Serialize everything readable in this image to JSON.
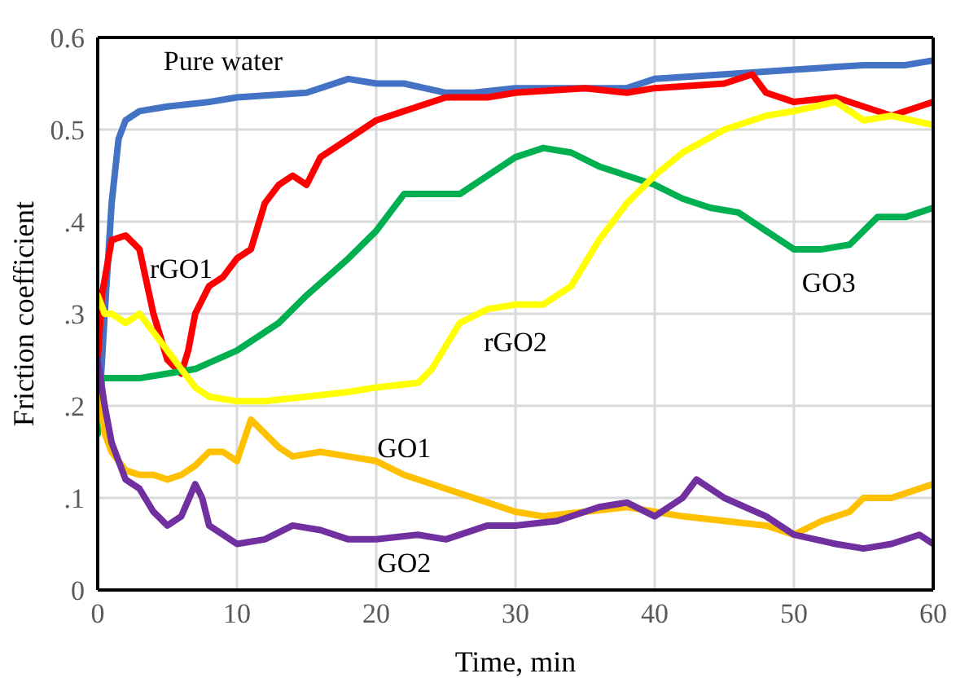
{
  "chart_data": {
    "type": "line",
    "xlabel": "Time, min",
    "ylabel": "Friction coefficient",
    "xlim": [
      0,
      60
    ],
    "xticks": [
      0,
      10,
      20,
      30,
      40,
      50,
      60
    ],
    "ylim": [
      0,
      0.6
    ],
    "yticks": [
      0,
      {
        "value": 0.1,
        "label": ".1"
      },
      {
        "value": 0.2,
        "label": ".2"
      },
      {
        "value": 0.3,
        "label": ".3"
      },
      {
        "value": 0.4,
        "label": ".4"
      },
      0.5,
      0.6
    ],
    "grid": true,
    "legend": false,
    "series": [
      {
        "name": "Pure water",
        "color": "#4472c4",
        "x": [
          0,
          0.5,
          1,
          1.5,
          2,
          3,
          5,
          8,
          10,
          15,
          18,
          20,
          22,
          25,
          27,
          30,
          35,
          38,
          40,
          45,
          50,
          55,
          58,
          60
        ],
        "values": [
          0.17,
          0.3,
          0.42,
          0.49,
          0.51,
          0.52,
          0.525,
          0.53,
          0.535,
          0.54,
          0.555,
          0.55,
          0.55,
          0.54,
          0.54,
          0.545,
          0.545,
          0.545,
          0.555,
          0.56,
          0.565,
          0.57,
          0.57,
          0.575
        ]
      },
      {
        "name": "rGO1",
        "color": "#ff0000",
        "x": [
          0,
          0.3,
          1,
          2,
          3,
          4,
          5,
          6,
          6.5,
          7,
          8,
          9,
          10,
          11,
          12,
          13,
          14,
          15,
          16,
          18,
          20,
          22,
          25,
          28,
          30,
          35,
          38,
          40,
          45,
          47,
          48,
          50,
          53,
          55,
          57,
          59,
          60
        ],
        "values": [
          0.25,
          0.32,
          0.38,
          0.385,
          0.37,
          0.3,
          0.25,
          0.235,
          0.26,
          0.3,
          0.33,
          0.34,
          0.36,
          0.37,
          0.42,
          0.44,
          0.45,
          0.44,
          0.47,
          0.49,
          0.51,
          0.52,
          0.535,
          0.535,
          0.54,
          0.545,
          0.54,
          0.545,
          0.55,
          0.56,
          0.54,
          0.53,
          0.535,
          0.525,
          0.515,
          0.525,
          0.53
        ]
      },
      {
        "name": "GO3",
        "color": "#00b050",
        "x": [
          0,
          0.3,
          1,
          3,
          5,
          7,
          10,
          13,
          15,
          18,
          20,
          22,
          24,
          26,
          28,
          30,
          32,
          34,
          36,
          38,
          40,
          42,
          44,
          46,
          48,
          50,
          52,
          54,
          56,
          58,
          60
        ],
        "values": [
          0.17,
          0.23,
          0.23,
          0.23,
          0.235,
          0.24,
          0.26,
          0.29,
          0.32,
          0.36,
          0.39,
          0.43,
          0.43,
          0.43,
          0.45,
          0.47,
          0.48,
          0.475,
          0.46,
          0.45,
          0.44,
          0.425,
          0.415,
          0.41,
          0.39,
          0.37,
          0.37,
          0.375,
          0.405,
          0.405,
          0.415
        ]
      },
      {
        "name": "rGO2",
        "color": "#ffff00",
        "x": [
          0,
          0.5,
          1,
          2,
          3,
          4,
          5,
          6,
          7,
          8,
          10,
          12,
          15,
          18,
          20,
          23,
          24,
          26,
          28,
          30,
          32,
          34,
          36,
          38,
          40,
          42,
          45,
          48,
          50,
          53,
          55,
          57,
          60
        ],
        "values": [
          0.32,
          0.3,
          0.3,
          0.29,
          0.3,
          0.28,
          0.26,
          0.24,
          0.22,
          0.21,
          0.205,
          0.205,
          0.21,
          0.215,
          0.22,
          0.225,
          0.24,
          0.29,
          0.305,
          0.31,
          0.31,
          0.33,
          0.38,
          0.42,
          0.45,
          0.475,
          0.5,
          0.515,
          0.52,
          0.53,
          0.51,
          0.515,
          0.505
        ]
      },
      {
        "name": "GO1",
        "color": "#ffc000",
        "x": [
          0,
          0.5,
          1,
          2,
          3,
          4,
          5,
          6,
          7,
          8,
          9,
          10,
          11,
          12,
          13,
          14,
          16,
          18,
          20,
          22,
          25,
          28,
          30,
          32,
          35,
          38,
          40,
          42,
          45,
          48,
          50,
          52,
          54,
          55,
          57,
          58,
          60
        ],
        "values": [
          0.22,
          0.17,
          0.15,
          0.13,
          0.125,
          0.125,
          0.12,
          0.125,
          0.135,
          0.15,
          0.15,
          0.14,
          0.185,
          0.17,
          0.155,
          0.145,
          0.15,
          0.145,
          0.14,
          0.125,
          0.11,
          0.095,
          0.085,
          0.08,
          0.085,
          0.09,
          0.085,
          0.08,
          0.075,
          0.07,
          0.06,
          0.075,
          0.085,
          0.1,
          0.1,
          0.105,
          0.115
        ]
      },
      {
        "name": "GO2",
        "color": "#7030a0",
        "x": [
          0,
          0.5,
          1,
          2,
          3,
          4,
          5,
          6,
          7,
          7.5,
          8,
          9,
          10,
          12,
          14,
          16,
          18,
          20,
          23,
          25,
          28,
          30,
          33,
          36,
          38,
          40,
          42,
          43,
          45,
          48,
          50,
          53,
          55,
          57,
          59,
          60
        ],
        "values": [
          0.25,
          0.2,
          0.16,
          0.12,
          0.11,
          0.085,
          0.07,
          0.08,
          0.115,
          0.1,
          0.07,
          0.06,
          0.05,
          0.055,
          0.07,
          0.065,
          0.055,
          0.055,
          0.06,
          0.055,
          0.07,
          0.07,
          0.075,
          0.09,
          0.095,
          0.08,
          0.1,
          0.12,
          0.1,
          0.08,
          0.06,
          0.05,
          0.045,
          0.05,
          0.06,
          0.05
        ]
      }
    ]
  }
}
